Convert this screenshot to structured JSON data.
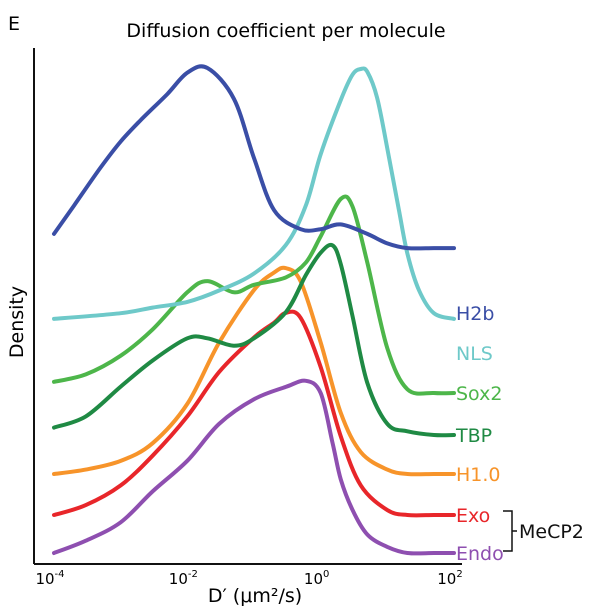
{
  "chart_data": {
    "type": "line",
    "panel_label": "E",
    "title": "Diffusion coefficient per molecule",
    "xlabel": "D′ (μm²/s)",
    "ylabel": "Density",
    "x_scale": "log10",
    "xlim": [
      0.0001,
      100
    ],
    "xticks": [
      {
        "value": 0.0001,
        "base": "10",
        "exp": "-4"
      },
      {
        "value": 0.01,
        "base": "10",
        "exp": "-2"
      },
      {
        "value": 1,
        "base": "10",
        "exp": "0"
      },
      {
        "value": 100,
        "base": "10",
        "exp": "2"
      }
    ],
    "grid": false,
    "legend": "right, labels at curve ends",
    "group_label": "MeCP2",
    "group_members": [
      "Exo",
      "Endo"
    ],
    "series": [
      {
        "name": "H2b",
        "color": "#3a4ea6",
        "x": [
          0.0001,
          0.0002,
          0.0005,
          0.001,
          0.002,
          0.005,
          0.01,
          0.02,
          0.05,
          0.1,
          0.2,
          0.5,
          1,
          2,
          5,
          10,
          20,
          50,
          100
        ],
        "y": [
          0.3,
          0.42,
          0.58,
          0.69,
          0.78,
          0.89,
          0.98,
          1.0,
          0.87,
          0.62,
          0.4,
          0.32,
          0.32,
          0.34,
          0.3,
          0.26,
          0.24,
          0.24,
          0.24
        ]
      },
      {
        "name": "NLS",
        "color": "#6ec9c9",
        "x": [
          0.0001,
          0.001,
          0.003,
          0.01,
          0.03,
          0.1,
          0.3,
          0.6,
          1,
          2,
          3,
          4,
          5,
          7,
          10,
          15,
          20,
          30,
          50,
          100
        ],
        "y": [
          0.12,
          0.14,
          0.16,
          0.18,
          0.22,
          0.28,
          0.38,
          0.52,
          0.7,
          0.89,
          0.98,
          1.0,
          0.99,
          0.9,
          0.72,
          0.5,
          0.35,
          0.22,
          0.14,
          0.12
        ]
      },
      {
        "name": "Sox2",
        "color": "#4db64a",
        "x": [
          0.0001,
          0.0003,
          0.001,
          0.003,
          0.01,
          0.02,
          0.05,
          0.1,
          0.3,
          0.6,
          1,
          2,
          3,
          5,
          10,
          20,
          50,
          100
        ],
        "y": [
          0.03,
          0.05,
          0.1,
          0.17,
          0.27,
          0.3,
          0.27,
          0.29,
          0.31,
          0.35,
          0.42,
          0.52,
          0.5,
          0.35,
          0.12,
          0.01,
          0.0,
          0.0
        ]
      },
      {
        "name": "TBP",
        "color": "#1f8a44",
        "x": [
          0.0001,
          0.0003,
          0.001,
          0.003,
          0.01,
          0.02,
          0.05,
          0.1,
          0.3,
          0.6,
          1,
          1.5,
          2,
          3,
          5,
          10,
          20,
          50,
          100
        ],
        "y": [
          0.02,
          0.05,
          0.13,
          0.2,
          0.26,
          0.26,
          0.24,
          0.26,
          0.33,
          0.43,
          0.49,
          0.51,
          0.46,
          0.32,
          0.14,
          0.03,
          0.01,
          0.0,
          0.0
        ]
      },
      {
        "name": "H1.0",
        "color": "#f7942a",
        "x": [
          0.0001,
          0.0003,
          0.001,
          0.003,
          0.01,
          0.03,
          0.1,
          0.2,
          0.3,
          0.5,
          1,
          2,
          4,
          10,
          20,
          50,
          100
        ],
        "y": [
          0.0,
          0.01,
          0.03,
          0.07,
          0.16,
          0.3,
          0.42,
          0.46,
          0.47,
          0.44,
          0.3,
          0.14,
          0.05,
          0.01,
          0.0,
          0.0,
          0.0
        ]
      },
      {
        "name": "Exo",
        "color": "#e8262a",
        "x": [
          0.0001,
          0.0003,
          0.001,
          0.003,
          0.01,
          0.03,
          0.1,
          0.2,
          0.3,
          0.5,
          1,
          2,
          4,
          10,
          20,
          50,
          100
        ],
        "y": [
          0.0,
          0.02,
          0.06,
          0.12,
          0.2,
          0.29,
          0.36,
          0.39,
          0.41,
          0.4,
          0.3,
          0.16,
          0.06,
          0.01,
          0.0,
          0.0,
          0.0
        ]
      },
      {
        "name": "Endo",
        "color": "#8e4fb0",
        "x": [
          0.0001,
          0.0003,
          0.001,
          0.003,
          0.01,
          0.03,
          0.1,
          0.3,
          0.6,
          1,
          1.5,
          2,
          3,
          5,
          10,
          20,
          50,
          100
        ],
        "y": [
          0.0,
          0.02,
          0.05,
          0.1,
          0.15,
          0.21,
          0.25,
          0.27,
          0.28,
          0.26,
          0.18,
          0.12,
          0.07,
          0.03,
          0.01,
          0.0,
          0.0,
          0.0
        ]
      }
    ]
  }
}
